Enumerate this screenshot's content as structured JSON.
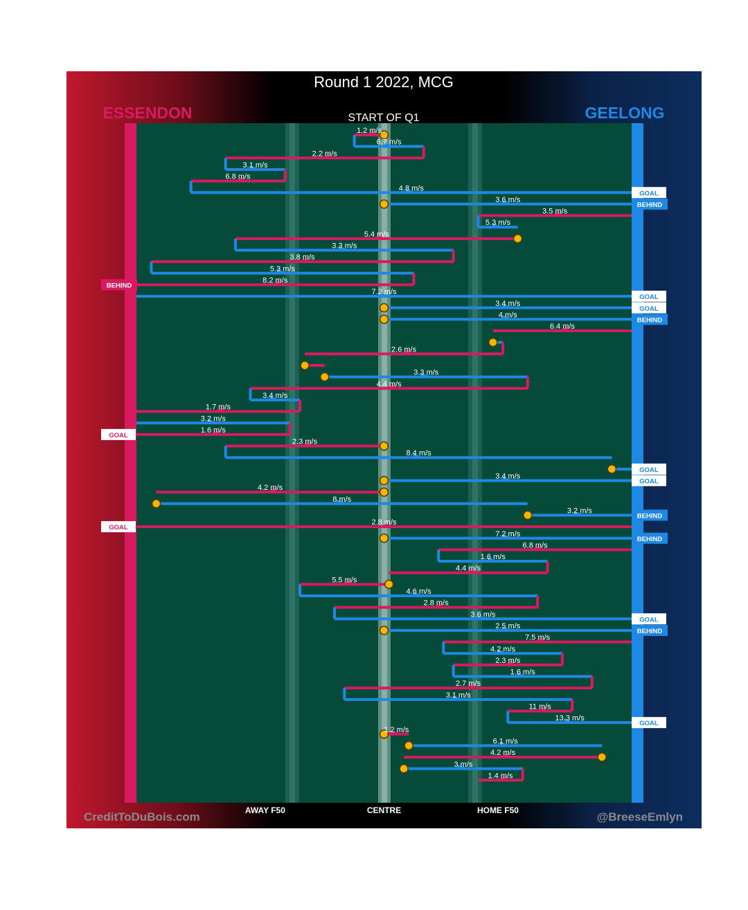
{
  "chart_data": {
    "type": "line",
    "title": "Round 1 2022, MCG",
    "subtitle": "START OF Q1",
    "teams": {
      "away": {
        "name": "ESSENDON",
        "color": "#d81b60"
      },
      "home": {
        "name": "GEELONG",
        "color": "#1e88e5"
      }
    },
    "x_axis": {
      "range": [
        0,
        100
      ],
      "ticks": [
        {
          "label": "AWAY F50",
          "x": 26
        },
        {
          "label": "CENTRE",
          "x": 50
        },
        {
          "label": "HOME F50",
          "x": 73
        }
      ]
    },
    "credit_left": "CreditToDuBois.com",
    "credit_right": "@BreeseEmlyn",
    "scoring_labels": {
      "goal": "GOAL",
      "behind": "BEHIND"
    },
    "chains": [
      {
        "team": "E",
        "speed": "1.2 m/s",
        "from": 50,
        "to": 44,
        "start_dot": true
      },
      {
        "team": "G",
        "speed": "6.7 m/s",
        "from": 44,
        "to": 58
      },
      {
        "team": "E",
        "speed": "2.2 m/s",
        "from": 58,
        "to": 18
      },
      {
        "team": "G",
        "speed": "3.1 m/s",
        "from": 18,
        "to": 30
      },
      {
        "team": "E",
        "speed": "6.8 m/s",
        "from": 30,
        "to": 11
      },
      {
        "team": "G",
        "speed": "4.8 m/s",
        "from": 11,
        "to": 100,
        "result": "GOAL"
      },
      {
        "team": "G",
        "speed": "3.6 m/s",
        "from": 50,
        "to": 100,
        "start_dot": true,
        "result": "BEHIND"
      },
      {
        "team": "E",
        "speed": "3.5 m/s",
        "from": 100,
        "to": 69
      },
      {
        "team": "G",
        "speed": "5.3 m/s",
        "from": 69,
        "to": 77
      },
      {
        "team": "E",
        "speed": "5.4 m/s",
        "from": 77,
        "to": 20,
        "start_dot": true
      },
      {
        "team": "G",
        "speed": "3.3 m/s",
        "from": 20,
        "to": 64
      },
      {
        "team": "E",
        "speed": "3.8 m/s",
        "from": 64,
        "to": 3
      },
      {
        "team": "G",
        "speed": "5.3 m/s",
        "from": 3,
        "to": 56
      },
      {
        "team": "E",
        "speed": "8.2 m/s",
        "from": 56,
        "to": 0,
        "result": "BEHIND"
      },
      {
        "team": "G",
        "speed": "7.2 m/s",
        "from": 0,
        "to": 100,
        "result": "GOAL"
      },
      {
        "team": "G",
        "speed": "3.4 m/s",
        "from": 50,
        "to": 100,
        "start_dot": true,
        "result": "GOAL"
      },
      {
        "team": "G",
        "speed": "4 m/s",
        "from": 50,
        "to": 100,
        "start_dot": true,
        "result": "BEHIND"
      },
      {
        "team": "E",
        "speed": "6.4 m/s",
        "from": 100,
        "to": 72
      },
      {
        "team": "G",
        "speed": "",
        "from": 72,
        "to": 74,
        "start_dot": true
      },
      {
        "team": "E",
        "speed": "2.6 m/s",
        "from": 74,
        "to": 34
      },
      {
        "team": "E",
        "speed": "",
        "from": 34,
        "to": 38,
        "start_dot": true
      },
      {
        "team": "G",
        "speed": "3.3 m/s",
        "from": 38,
        "to": 79,
        "start_dot": true
      },
      {
        "team": "E",
        "speed": "4.4 m/s",
        "from": 79,
        "to": 23
      },
      {
        "team": "G",
        "speed": "3.4 m/s",
        "from": 23,
        "to": 33
      },
      {
        "team": "E",
        "speed": "1.7 m/s",
        "from": 33,
        "to": 0
      },
      {
        "team": "G",
        "speed": "3.2 m/s",
        "from": 0,
        "to": 31
      },
      {
        "team": "E",
        "speed": "1.6 m/s",
        "from": 31,
        "to": 0,
        "result": "GOAL"
      },
      {
        "team": "E",
        "speed": "2.3 m/s",
        "from": 50,
        "to": 18,
        "start_dot": true
      },
      {
        "team": "G",
        "speed": "8.4 m/s",
        "from": 18,
        "to": 96
      },
      {
        "team": "G",
        "speed": "",
        "from": 96,
        "to": 100,
        "start_dot": true,
        "result": "GOAL"
      },
      {
        "team": "G",
        "speed": "3.4 m/s",
        "from": 50,
        "to": 100,
        "start_dot": true,
        "result": "GOAL"
      },
      {
        "team": "E",
        "speed": "4.2 m/s",
        "from": 50,
        "to": 4,
        "start_dot": true
      },
      {
        "team": "G",
        "speed": "8 m/s",
        "from": 4,
        "to": 79,
        "start_dot": true
      },
      {
        "team": "G",
        "speed": "3.2 m/s",
        "from": 79,
        "to": 100,
        "start_dot": true,
        "result": "BEHIND"
      },
      {
        "team": "E",
        "speed": "2.8 m/s",
        "from": 100,
        "to": 0,
        "result": "GOAL"
      },
      {
        "team": "G",
        "speed": "7.2 m/s",
        "from": 50,
        "to": 100,
        "start_dot": true,
        "result": "BEHIND"
      },
      {
        "team": "E",
        "speed": "6.8 m/s",
        "from": 100,
        "to": 61
      },
      {
        "team": "G",
        "speed": "1.6 m/s",
        "from": 61,
        "to": 83
      },
      {
        "team": "E",
        "speed": "4.4 m/s",
        "from": 83,
        "to": 51
      },
      {
        "team": "E",
        "speed": "5.5 m/s",
        "from": 51,
        "to": 33,
        "start_dot": true
      },
      {
        "team": "G",
        "speed": "4.6 m/s",
        "from": 33,
        "to": 81
      },
      {
        "team": "E",
        "speed": "2.8 m/s",
        "from": 81,
        "to": 40
      },
      {
        "team": "G",
        "speed": "3.6 m/s",
        "from": 40,
        "to": 100,
        "result": "GOAL"
      },
      {
        "team": "G",
        "speed": "2.5 m/s",
        "from": 50,
        "to": 100,
        "start_dot": true,
        "result": "BEHIND"
      },
      {
        "team": "E",
        "speed": "7.5 m/s",
        "from": 100,
        "to": 62
      },
      {
        "team": "G",
        "speed": "4.2 m/s",
        "from": 62,
        "to": 86
      },
      {
        "team": "E",
        "speed": "2.3 m/s",
        "from": 86,
        "to": 64
      },
      {
        "team": "G",
        "speed": "1.6 m/s",
        "from": 64,
        "to": 92
      },
      {
        "team": "E",
        "speed": "2.7 m/s",
        "from": 92,
        "to": 42
      },
      {
        "team": "G",
        "speed": "3.1 m/s",
        "from": 42,
        "to": 88
      },
      {
        "team": "E",
        "speed": "11 m/s",
        "from": 88,
        "to": 75
      },
      {
        "team": "G",
        "speed": "13.3 m/s",
        "from": 75,
        "to": 100,
        "result": "GOAL"
      },
      {
        "team": "E",
        "speed": "1.2 m/s",
        "from": 50,
        "to": 55,
        "start_dot": true
      },
      {
        "team": "G",
        "speed": "6.1 m/s",
        "from": 55,
        "to": 94,
        "start_dot": true
      },
      {
        "team": "E",
        "speed": "4.2 m/s",
        "from": 94,
        "to": 54,
        "start_dot": true
      },
      {
        "team": "G",
        "speed": "3 m/s",
        "from": 54,
        "to": 78,
        "start_dot": true
      },
      {
        "team": "E",
        "speed": "1.4 m/s",
        "from": 78,
        "to": 69
      }
    ]
  }
}
